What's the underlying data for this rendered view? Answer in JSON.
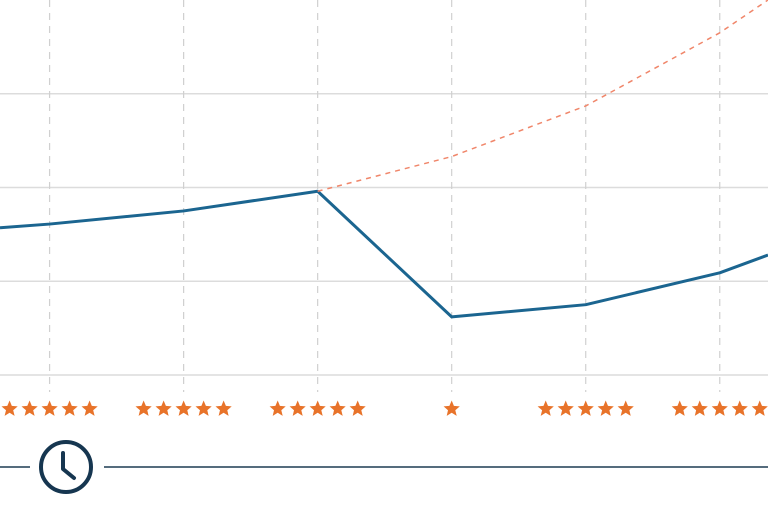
{
  "chart_data": {
    "type": "line",
    "x": [
      -0.37,
      0,
      1,
      2,
      3,
      4,
      5,
      5.36
    ],
    "series": [
      {
        "color": "#1b6590",
        "dash": false,
        "values": [
          1.57,
          1.61,
          1.75,
          1.96,
          0.62,
          0.75,
          1.09,
          1.28
        ]
      },
      {
        "color": "#f0866a",
        "dash": true,
        "values": [
          null,
          null,
          null,
          1.96,
          2.33,
          2.87,
          3.65,
          4.0
        ]
      }
    ],
    "xlim": [
      -0.37,
      5.36
    ],
    "ylim": [
      0,
      4
    ],
    "xticks": [
      0,
      1,
      2,
      3,
      4,
      5
    ],
    "yticks": [
      0,
      1,
      2,
      3
    ],
    "ratings": [
      5,
      5,
      5,
      1,
      5,
      5
    ],
    "star_color": "#e8732a",
    "grid": true
  }
}
